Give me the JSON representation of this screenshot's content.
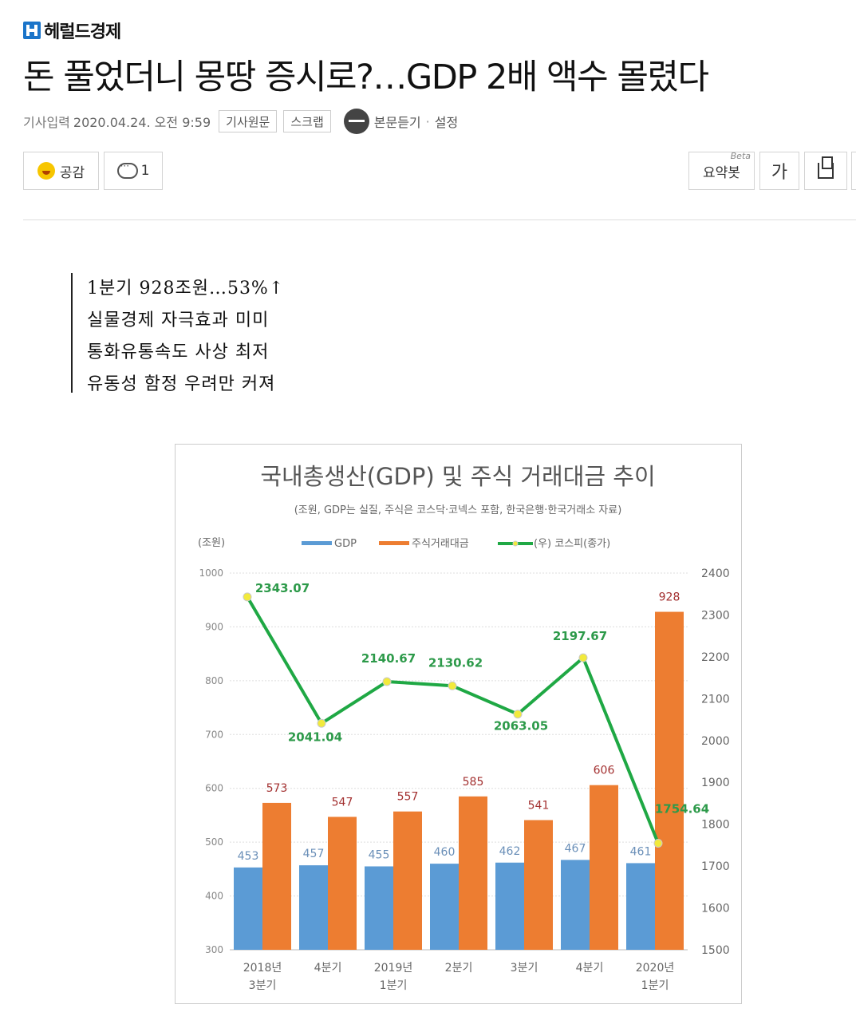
{
  "site": {
    "logo": "헤럴드경제",
    "logo_icon": "herald-h-icon"
  },
  "article": {
    "headline": "돈 풀었더니 몽땅 증시로?…GDP 2배 액수 몰렸다",
    "meta_label": "기사입력",
    "date": "2020.04.24. 오전 9:59",
    "original_button": "기사원문",
    "scrap_button": "스크랩",
    "listen_label": "본문듣기",
    "settings_label": "설정"
  },
  "reactions": {
    "like_label": "공감",
    "comment_count": "1"
  },
  "tools": {
    "summary_label": "요약봇",
    "summary_badge": "Beta",
    "font_label": "가"
  },
  "summary_lines": [
    "1분기 928조원…53%↑",
    "실물경제 자극효과 미미",
    "통화유통속도 사상 최저",
    "유동성 함정 우려만 커져"
  ],
  "chart_data": {
    "type": "bar",
    "title": "국내총생산(GDP) 및 주식 거래대금 추이",
    "subtitle": "(조원, GDP는 실질, 주식은 코스닥·코넥스 포함, 한국은행·한국거래소 자료)",
    "y_unit": "(조원)",
    "categories": [
      [
        "2018년",
        "3분기"
      ],
      [
        "4분기"
      ],
      [
        "2019년",
        "1분기"
      ],
      [
        "2분기"
      ],
      [
        "3분기"
      ],
      [
        "4분기"
      ],
      [
        "2020년",
        "1분기"
      ]
    ],
    "series": [
      {
        "name": "GDP",
        "type": "bar",
        "color": "#5b9bd5",
        "values": [
          453,
          457,
          455,
          460,
          462,
          467,
          461
        ]
      },
      {
        "name": "주식거래대금",
        "type": "bar",
        "color": "#ed7d31",
        "values": [
          573,
          547,
          557,
          585,
          541,
          606,
          928
        ]
      },
      {
        "name": "(우) 코스피(종가)",
        "type": "line",
        "color": "#1fa844",
        "axis": "right",
        "values": [
          2343.07,
          2041.04,
          2140.67,
          2130.62,
          2063.05,
          2197.67,
          1754.64
        ]
      }
    ],
    "value_labels": {
      "bar1": [
        "453",
        "457",
        "455",
        "460",
        "462",
        "467",
        "461"
      ],
      "bar2": [
        "573",
        "547",
        "557",
        "585",
        "541",
        "606",
        "928"
      ],
      "line": [
        "2343.07",
        "2041.04",
        "2140.67",
        "2130.62",
        "2063.05",
        "2197.67",
        "1754.64"
      ]
    },
    "ylim_left": [
      300,
      1000
    ],
    "yticks_left": [
      "300",
      "400",
      "500",
      "600",
      "700",
      "800",
      "900",
      "1000"
    ],
    "ylim_right": [
      1500,
      2400
    ],
    "yticks_right": [
      "1500",
      "1600",
      "1700",
      "1800",
      "1900",
      "2000",
      "2100",
      "2200",
      "2300",
      "2400"
    ],
    "grid": true,
    "legend_position": "top"
  }
}
